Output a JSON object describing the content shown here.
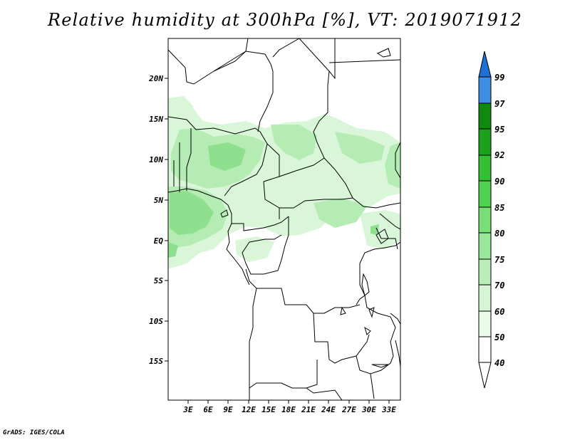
{
  "title": "Relative humidity at 300hPa [%], VT: 2019071912",
  "credit": "GrADS: IGES/COLA",
  "map": {
    "lat_labels": [
      "20N",
      "15N",
      "10N",
      "5N",
      "EQ",
      "5S",
      "10S",
      "15S"
    ],
    "lon_labels": [
      "3E",
      "6E",
      "9E",
      "12E",
      "15E",
      "18E",
      "21E",
      "24E",
      "27E",
      "30E",
      "33E"
    ]
  },
  "colorbar": {
    "labels": [
      "99",
      "97",
      "95",
      "92",
      "90",
      "85",
      "80",
      "75",
      "70",
      "60",
      "50",
      "40"
    ],
    "colors": [
      "#1e6fd6",
      "#3f8ee6",
      "#0f8a0f",
      "#1aa31a",
      "#35bf35",
      "#4fd24f",
      "#78de78",
      "#9ae69a",
      "#b9eeb9",
      "#d5f5d5",
      "#eafbea",
      "#ffffff"
    ]
  },
  "colors": {
    "humidity_light": "#d9f6d9",
    "humidity_mid": "#b4ecb4",
    "humidity_dark": "#8ee08e"
  }
}
